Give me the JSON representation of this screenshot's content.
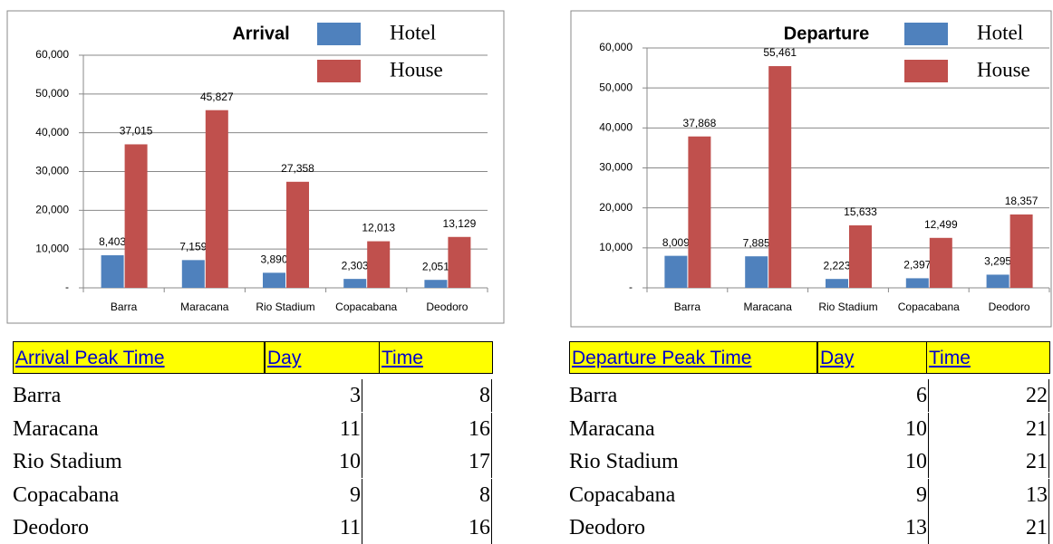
{
  "chart_data": [
    {
      "type": "bar",
      "title": "Arrival",
      "categories": [
        "Barra",
        "Maracana",
        "Rio Stadium",
        "Copacabana",
        "Deodoro"
      ],
      "series": [
        {
          "name": "Hotel",
          "color": "#4f81bd",
          "values": [
            8403,
            7159,
            3890,
            2303,
            2051
          ],
          "value_labels": [
            "8,403",
            "7,159",
            "3,890",
            "2,303",
            "2,051"
          ]
        },
        {
          "name": "House",
          "color": "#c0504d",
          "values": [
            37015,
            45827,
            27358,
            12013,
            13129
          ],
          "value_labels": [
            "37,015",
            "45,827",
            "27,358",
            "12,013",
            "13,129"
          ]
        }
      ],
      "ylim": [
        0,
        60000
      ],
      "yticks": [
        {
          "value": 0,
          "label": "-"
        },
        {
          "value": 10000,
          "label": "10,000"
        },
        {
          "value": 20000,
          "label": "20,000"
        },
        {
          "value": 30000,
          "label": "30,000"
        },
        {
          "value": 40000,
          "label": "40,000"
        },
        {
          "value": 50000,
          "label": "50,000"
        },
        {
          "value": 60000,
          "label": "60,000"
        }
      ],
      "grid": true
    },
    {
      "type": "bar",
      "title": "Departure",
      "categories": [
        "Barra",
        "Maracana",
        "Rio Stadium",
        "Copacabana",
        "Deodoro"
      ],
      "series": [
        {
          "name": "Hotel",
          "color": "#4f81bd",
          "values": [
            8009,
            7885,
            2223,
            2397,
            3295
          ],
          "value_labels": [
            "8,009",
            "7,885",
            "2,223",
            "2,397",
            "3,295"
          ]
        },
        {
          "name": "House",
          "color": "#c0504d",
          "values": [
            37868,
            55461,
            15633,
            12499,
            18357
          ],
          "value_labels": [
            "37,868",
            "55,461",
            "15,633",
            "12,499",
            "18,357"
          ]
        }
      ],
      "ylim": [
        0,
        60000
      ],
      "yticks": [
        {
          "value": 0,
          "label": "-"
        },
        {
          "value": 10000,
          "label": "10,000"
        },
        {
          "value": 20000,
          "label": "20,000"
        },
        {
          "value": 30000,
          "label": "30,000"
        },
        {
          "value": 40000,
          "label": "40,000"
        },
        {
          "value": 50000,
          "label": "50,000"
        },
        {
          "value": 60000,
          "label": "60,000"
        }
      ],
      "grid": true
    }
  ],
  "tables": [
    {
      "columns": [
        "Arrival Peak Time",
        "Day",
        "Time"
      ],
      "rows": [
        [
          "Barra",
          3,
          8
        ],
        [
          "Maracana",
          11,
          16
        ],
        [
          "Rio Stadium",
          10,
          17
        ],
        [
          "Copacabana",
          9,
          8
        ],
        [
          "Deodoro",
          11,
          16
        ]
      ]
    },
    {
      "columns": [
        "Departure Peak Time",
        "Day",
        "Time"
      ],
      "rows": [
        [
          "Barra",
          6,
          22
        ],
        [
          "Maracana",
          10,
          21
        ],
        [
          "Rio Stadium",
          10,
          21
        ],
        [
          "Copacabana",
          9,
          13
        ],
        [
          "Deodoro",
          13,
          21
        ]
      ]
    }
  ]
}
